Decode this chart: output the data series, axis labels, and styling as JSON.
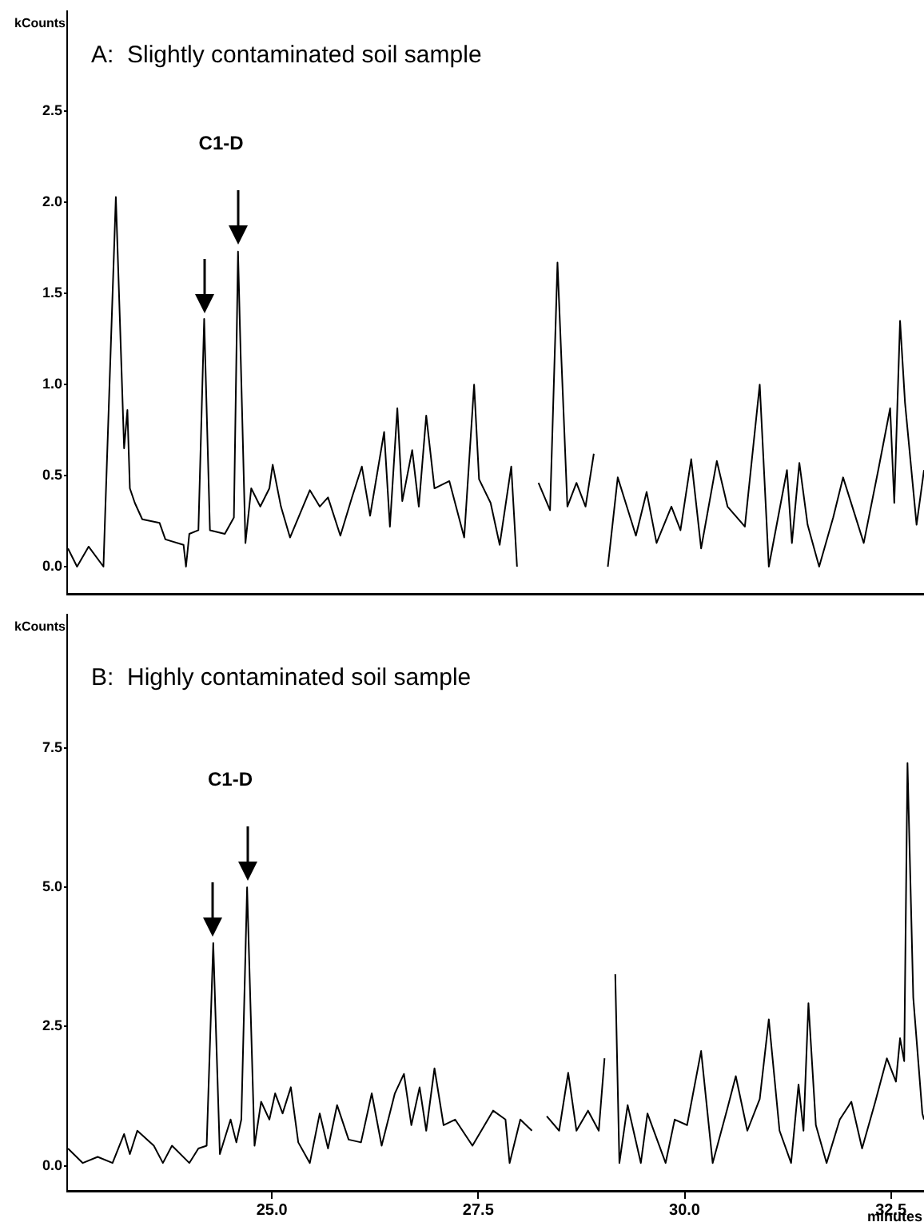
{
  "chart_data": [
    {
      "type": "line",
      "title": "A:  Slightly contaminated soil sample",
      "ylabel": "kCounts",
      "color": "#000000",
      "marker": "none",
      "grid": false,
      "tick_labels": "y",
      "annotations": [
        "C1-D"
      ],
      "xlim": [
        22.52,
        32.9
      ],
      "ylim": [
        -0.15,
        3.05
      ],
      "yticks": [
        {
          "value": 0,
          "label": "0.0"
        },
        {
          "value": 0.5,
          "label": "0.5"
        },
        {
          "value": 1,
          "label": "1.0"
        },
        {
          "value": 1.5,
          "label": "1.5"
        },
        {
          "value": 2,
          "label": "2.0"
        },
        {
          "value": 2.5,
          "label": "2.5"
        }
      ],
      "x": [
        22.53,
        22.64,
        22.78,
        22.96,
        22.98,
        23.11,
        23.21,
        23.25,
        23.28,
        23.34,
        23.43,
        23.64,
        23.71,
        23.93,
        23.96,
        24.0,
        24.11,
        24.18,
        24.25,
        24.43,
        24.54,
        24.59,
        24.68,
        24.75,
        24.86,
        24.97,
        25.01,
        25.11,
        25.22,
        25.46,
        25.58,
        25.68,
        25.83,
        25.97,
        26.09,
        26.19,
        26.36,
        26.43,
        26.52,
        26.58,
        26.7,
        26.78,
        26.87,
        26.97,
        27.15,
        27.33,
        27.45,
        27.51,
        27.65,
        27.76,
        27.9,
        27.97,
        28.07,
        28.23,
        28.37,
        28.46,
        28.58,
        28.69,
        28.8,
        28.9,
        28.99,
        29.07,
        29.19,
        29.3,
        29.41,
        29.54,
        29.66,
        29.84,
        29.95,
        30.08,
        30.2,
        30.39,
        30.52,
        30.73,
        30.91,
        31.02,
        31.24,
        31.3,
        31.39,
        31.49,
        31.63,
        31.8,
        31.92,
        32.17,
        32.35,
        32.49,
        32.54,
        32.61,
        32.67,
        32.81,
        32.9
      ],
      "values": [
        0.1,
        0.0,
        0.11,
        0.0,
        0.28,
        2.03,
        0.65,
        0.86,
        0.43,
        0.35,
        0.26,
        0.24,
        0.15,
        0.12,
        0.0,
        0.18,
        0.2,
        1.36,
        0.2,
        0.18,
        0.27,
        1.73,
        0.13,
        0.43,
        0.33,
        0.43,
        0.56,
        0.33,
        0.16,
        0.42,
        0.33,
        0.38,
        0.17,
        0.38,
        0.55,
        0.28,
        0.74,
        0.22,
        0.87,
        0.36,
        0.64,
        0.33,
        0.83,
        0.43,
        0.47,
        0.16,
        1.0,
        0.48,
        0.35,
        0.12,
        0.55,
        0.0,
        null,
        0.46,
        0.31,
        1.67,
        0.33,
        0.46,
        0.33,
        0.62,
        null,
        0.0,
        0.49,
        0.33,
        0.17,
        0.41,
        0.13,
        0.33,
        0.2,
        0.59,
        0.1,
        0.58,
        0.33,
        0.22,
        1.0,
        0.0,
        0.53,
        0.13,
        0.57,
        0.23,
        0.0,
        0.27,
        0.49,
        0.13,
        0.54,
        0.87,
        0.35,
        1.35,
        0.9,
        0.23,
        0.53
      ]
    },
    {
      "type": "line",
      "title": "B:  Highly contaminated soil sample",
      "ylabel": "kCounts",
      "xlabel": "minutes",
      "color": "#000000",
      "marker": "none",
      "grid": false,
      "annotations": [
        "C1-D"
      ],
      "xlim": [
        22.52,
        32.9
      ],
      "ylim": [
        -0.45,
        9.9
      ],
      "xticks": [
        {
          "value": 25,
          "label": "25.0"
        },
        {
          "value": 27.5,
          "label": "27.5"
        },
        {
          "value": 30,
          "label": "30.0"
        },
        {
          "value": 32.5,
          "label": "32.5"
        }
      ],
      "yticks": [
        {
          "value": 0,
          "label": "0.0"
        },
        {
          "value": 2.5,
          "label": "2.5"
        },
        {
          "value": 5,
          "label": "5.0"
        },
        {
          "value": 7.5,
          "label": "7.5"
        }
      ],
      "x": [
        22.53,
        22.71,
        22.89,
        23.07,
        23.21,
        23.28,
        23.37,
        23.57,
        23.68,
        23.79,
        24.0,
        24.11,
        24.21,
        24.29,
        24.37,
        24.5,
        24.57,
        24.63,
        24.7,
        24.79,
        24.87,
        24.97,
        25.04,
        25.13,
        25.23,
        25.32,
        25.46,
        25.58,
        25.68,
        25.79,
        25.93,
        26.08,
        26.21,
        26.33,
        26.49,
        26.6,
        26.69,
        26.79,
        26.87,
        26.97,
        27.08,
        27.22,
        27.43,
        27.68,
        27.83,
        27.88,
        28.01,
        28.15,
        28.21,
        28.33,
        28.48,
        28.59,
        28.69,
        28.83,
        28.96,
        29.03,
        29.09,
        29.16,
        29.21,
        29.31,
        29.47,
        29.55,
        29.77,
        29.88,
        30.03,
        30.2,
        30.34,
        30.52,
        30.62,
        30.76,
        30.91,
        31.02,
        31.15,
        31.29,
        31.38,
        31.44,
        31.5,
        31.59,
        31.72,
        31.88,
        32.02,
        32.15,
        32.31,
        32.45,
        32.56,
        32.61,
        32.66,
        32.7,
        32.77,
        32.88,
        32.9
      ],
      "values": [
        0.31,
        0.05,
        0.16,
        0.05,
        0.57,
        0.21,
        0.63,
        0.36,
        0.05,
        0.36,
        0.05,
        0.31,
        0.36,
        4.0,
        0.21,
        0.83,
        0.42,
        0.83,
        5.0,
        0.36,
        1.15,
        0.83,
        1.3,
        0.94,
        1.41,
        0.42,
        0.05,
        0.94,
        0.31,
        1.09,
        0.47,
        0.42,
        1.3,
        0.36,
        1.3,
        1.65,
        0.73,
        1.41,
        0.63,
        1.75,
        0.73,
        0.83,
        0.36,
        0.99,
        0.83,
        0.05,
        0.83,
        0.63,
        null,
        0.89,
        0.63,
        1.67,
        0.63,
        0.99,
        0.63,
        1.93,
        null,
        3.44,
        0.05,
        1.09,
        0.05,
        0.94,
        0.05,
        0.83,
        0.73,
        2.06,
        0.05,
        1.04,
        1.61,
        0.63,
        1.2,
        2.63,
        0.63,
        0.05,
        1.46,
        0.63,
        2.92,
        0.73,
        0.05,
        0.83,
        1.15,
        0.31,
        1.15,
        1.93,
        1.51,
        2.29,
        1.88,
        7.23,
        3.02,
        0.94,
        0.83
      ]
    }
  ]
}
